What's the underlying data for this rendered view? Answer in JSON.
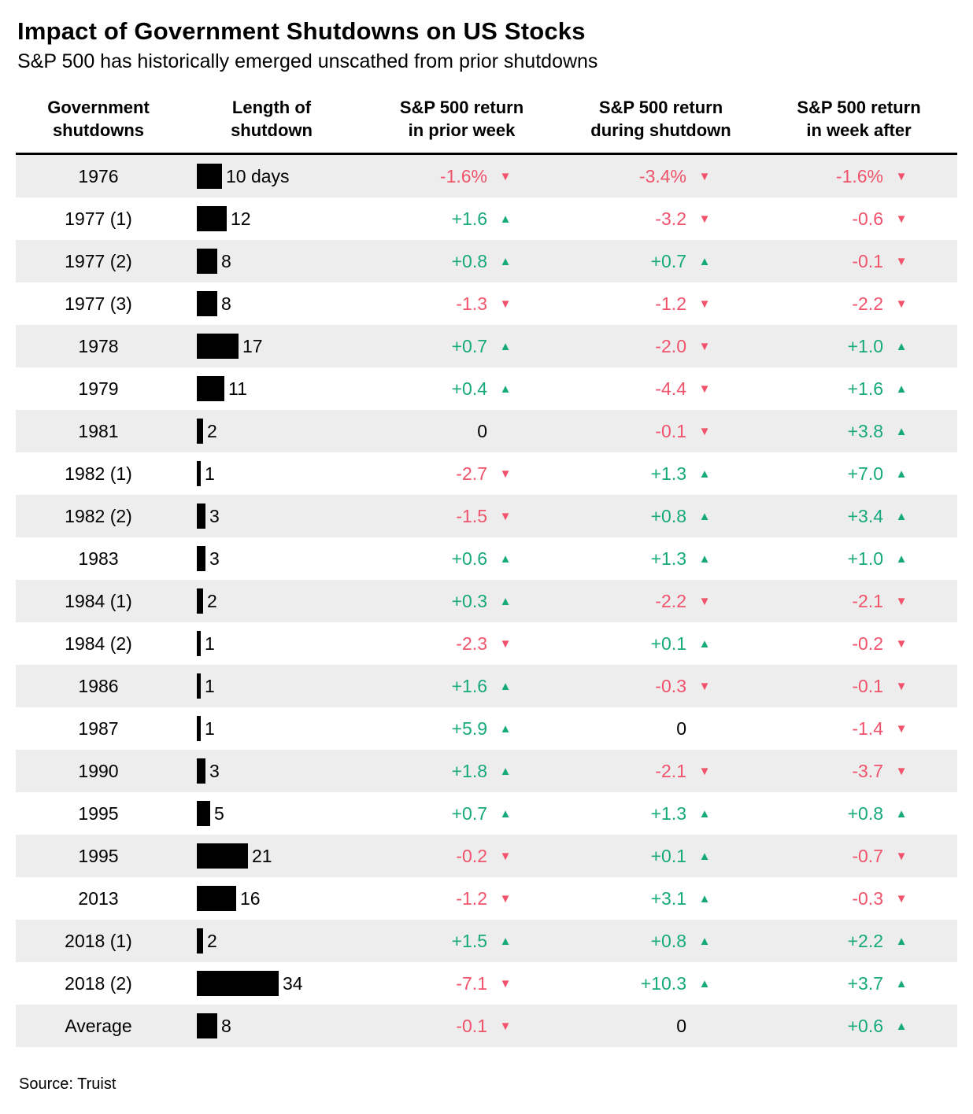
{
  "title": "Impact of Government Shutdowns on US Stocks",
  "subtitle": "S&P 500 has historically emerged unscathed from prior shutdowns",
  "source": "Source: Truist",
  "colors": {
    "positive": "#16a97b",
    "negative": "#f0536b",
    "bar": "#000000",
    "row_stripe": "#ededed"
  },
  "header": {
    "col1": {
      "line1": "Government",
      "line2": "shutdowns"
    },
    "col2": {
      "line1": "Length of",
      "line2": "shutdown"
    },
    "col3": {
      "line1": "S&P 500 return",
      "line2": "in prior week"
    },
    "col4": {
      "line1": "S&P 500 return",
      "line2": "during shutdown"
    },
    "col5": {
      "line1": "S&P 500 return",
      "line2": "in week after"
    }
  },
  "chart_data": {
    "type": "table",
    "title": "Impact of Government Shutdowns on US Stocks",
    "columns": [
      "Government shutdowns",
      "Length of shutdown (days)",
      "S&P 500 return in prior week (%)",
      "S&P 500 return during shutdown (%)",
      "S&P 500 return in week after (%)"
    ],
    "bar_unit": "days",
    "rows": [
      {
        "label": "1976",
        "days": 10,
        "days_label": "10 days",
        "prior": "-1.6%",
        "during": "-3.4%",
        "after": "-1.6%"
      },
      {
        "label": "1977 (1)",
        "days": 12,
        "days_label": "12",
        "prior": "+1.6",
        "during": "-3.2",
        "after": "-0.6"
      },
      {
        "label": "1977 (2)",
        "days": 8,
        "days_label": "8",
        "prior": "+0.8",
        "during": "+0.7",
        "after": "-0.1"
      },
      {
        "label": "1977 (3)",
        "days": 8,
        "days_label": "8",
        "prior": "-1.3",
        "during": "-1.2",
        "after": "-2.2"
      },
      {
        "label": "1978",
        "days": 17,
        "days_label": "17",
        "prior": "+0.7",
        "during": "-2.0",
        "after": "+1.0"
      },
      {
        "label": "1979",
        "days": 11,
        "days_label": "11",
        "prior": "+0.4",
        "during": "-4.4",
        "after": "+1.6"
      },
      {
        "label": "1981",
        "days": 2,
        "days_label": "2",
        "prior": "0",
        "during": "-0.1",
        "after": "+3.8"
      },
      {
        "label": "1982 (1)",
        "days": 1,
        "days_label": "1",
        "prior": "-2.7",
        "during": "+1.3",
        "after": "+7.0"
      },
      {
        "label": "1982 (2)",
        "days": 3,
        "days_label": "3",
        "prior": "-1.5",
        "during": "+0.8",
        "after": "+3.4"
      },
      {
        "label": "1983",
        "days": 3,
        "days_label": "3",
        "prior": "+0.6",
        "during": "+1.3",
        "after": "+1.0"
      },
      {
        "label": "1984 (1)",
        "days": 2,
        "days_label": "2",
        "prior": "+0.3",
        "during": "-2.2",
        "after": "-2.1"
      },
      {
        "label": "1984 (2)",
        "days": 1,
        "days_label": "1",
        "prior": "-2.3",
        "during": "+0.1",
        "after": "-0.2"
      },
      {
        "label": "1986",
        "days": 1,
        "days_label": "1",
        "prior": "+1.6",
        "during": "-0.3",
        "after": "-0.1"
      },
      {
        "label": "1987",
        "days": 1,
        "days_label": "1",
        "prior": "+5.9",
        "during": "0",
        "after": "-1.4"
      },
      {
        "label": "1990",
        "days": 3,
        "days_label": "3",
        "prior": "+1.8",
        "during": "-2.1",
        "after": "-3.7"
      },
      {
        "label": "1995",
        "days": 5,
        "days_label": "5",
        "prior": "+0.7",
        "during": "+1.3",
        "after": "+0.8"
      },
      {
        "label": "1995",
        "days": 21,
        "days_label": "21",
        "prior": "-0.2",
        "during": "+0.1",
        "after": "-0.7"
      },
      {
        "label": "2013",
        "days": 16,
        "days_label": "16",
        "prior": "-1.2",
        "during": "+3.1",
        "after": "-0.3"
      },
      {
        "label": "2018 (1)",
        "days": 2,
        "days_label": "2",
        "prior": "+1.5",
        "during": "+0.8",
        "after": "+2.2"
      },
      {
        "label": "2018 (2)",
        "days": 34,
        "days_label": "34",
        "prior": "-7.1",
        "during": "+10.3",
        "after": "+3.7"
      },
      {
        "label": "Average",
        "days": 8,
        "days_label": "8",
        "prior": "-0.1",
        "during": "0",
        "after": "+0.6"
      }
    ]
  }
}
